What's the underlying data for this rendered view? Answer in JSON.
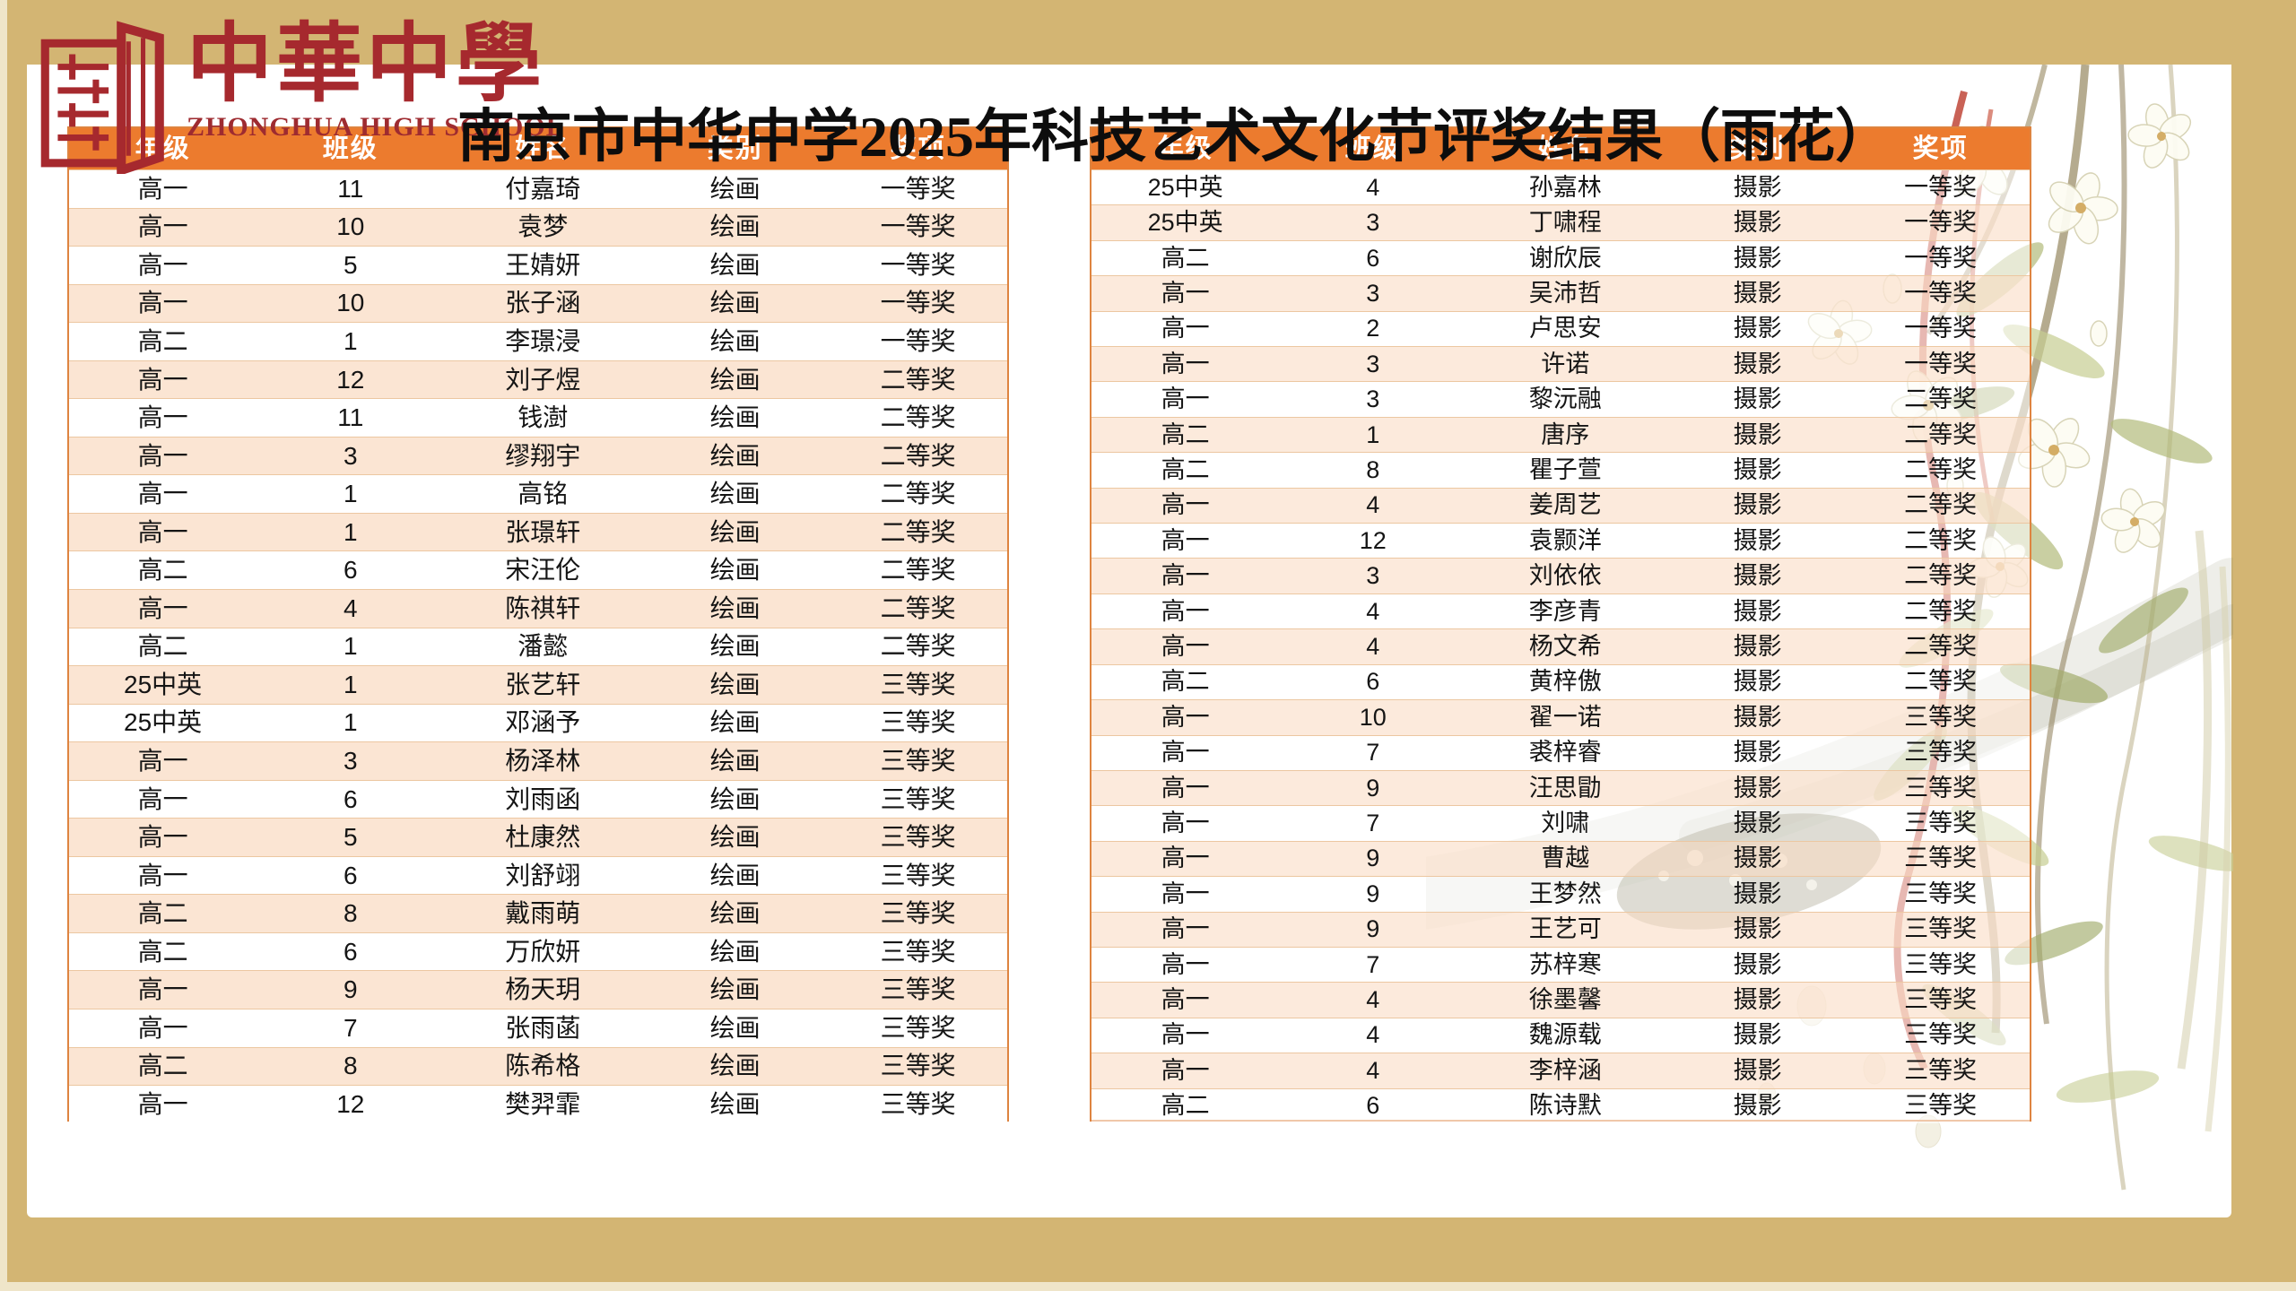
{
  "page": {
    "title": "南京市中华中学2025年科技艺术文化节评奖结果（雨花）",
    "background_color": "#D3B573"
  },
  "logo": {
    "school_name_zh": "中華中學",
    "school_name_en": "ZHONGHUA HIGH SCHOOL",
    "seal_color": "#A6292E"
  },
  "colors": {
    "header_bg": "#EC7B2E",
    "row_alt": "#FBE5D3",
    "table_border": "#DE8440",
    "row_line": "#ECC7A1",
    "gold_band": "#D3B573"
  },
  "table_headers": [
    "年级",
    "班级",
    "姓名",
    "类别",
    "奖项"
  ],
  "left_table": {
    "rows": [
      [
        "高一",
        "11",
        "付嘉琦",
        "绘画",
        "一等奖"
      ],
      [
        "高一",
        "10",
        "袁梦",
        "绘画",
        "一等奖"
      ],
      [
        "高一",
        "5",
        "王婧妍",
        "绘画",
        "一等奖"
      ],
      [
        "高一",
        "10",
        "张子涵",
        "绘画",
        "一等奖"
      ],
      [
        "高二",
        "1",
        "李璟浸",
        "绘画",
        "一等奖"
      ],
      [
        "高一",
        "12",
        "刘子煜",
        "绘画",
        "二等奖"
      ],
      [
        "高一",
        "11",
        "钱澍",
        "绘画",
        "二等奖"
      ],
      [
        "高一",
        "3",
        "缪翔宇",
        "绘画",
        "二等奖"
      ],
      [
        "高一",
        "1",
        "高铭",
        "绘画",
        "二等奖"
      ],
      [
        "高一",
        "1",
        "张璟轩",
        "绘画",
        "二等奖"
      ],
      [
        "高二",
        "6",
        "宋汪伦",
        "绘画",
        "二等奖"
      ],
      [
        "高一",
        "4",
        "陈祺轩",
        "绘画",
        "二等奖"
      ],
      [
        "高二",
        "1",
        "潘懿",
        "绘画",
        "二等奖"
      ],
      [
        "25中英",
        "1",
        "张艺轩",
        "绘画",
        "三等奖"
      ],
      [
        "25中英",
        "1",
        "邓涵予",
        "绘画",
        "三等奖"
      ],
      [
        "高一",
        "3",
        "杨泽林",
        "绘画",
        "三等奖"
      ],
      [
        "高一",
        "6",
        "刘雨函",
        "绘画",
        "三等奖"
      ],
      [
        "高一",
        "5",
        "杜康然",
        "绘画",
        "三等奖"
      ],
      [
        "高一",
        "6",
        "刘舒翊",
        "绘画",
        "三等奖"
      ],
      [
        "高二",
        "8",
        "戴雨萌",
        "绘画",
        "三等奖"
      ],
      [
        "高二",
        "6",
        "万欣妍",
        "绘画",
        "三等奖"
      ],
      [
        "高一",
        "9",
        "杨天玥",
        "绘画",
        "三等奖"
      ],
      [
        "高一",
        "7",
        "张雨菡",
        "绘画",
        "三等奖"
      ],
      [
        "高二",
        "8",
        "陈希格",
        "绘画",
        "三等奖"
      ],
      [
        "高一",
        "12",
        "樊羿霏",
        "绘画",
        "三等奖"
      ]
    ]
  },
  "right_table": {
    "rows": [
      [
        "25中英",
        "4",
        "孙嘉林",
        "摄影",
        "一等奖"
      ],
      [
        "25中英",
        "3",
        "丁啸程",
        "摄影",
        "一等奖"
      ],
      [
        "高二",
        "6",
        "谢欣辰",
        "摄影",
        "一等奖"
      ],
      [
        "高一",
        "3",
        "吴沛哲",
        "摄影",
        "一等奖"
      ],
      [
        "高一",
        "2",
        "卢思安",
        "摄影",
        "一等奖"
      ],
      [
        "高一",
        "3",
        "许诺",
        "摄影",
        "一等奖"
      ],
      [
        "高一",
        "3",
        "黎沅融",
        "摄影",
        "二等奖"
      ],
      [
        "高二",
        "1",
        "唐序",
        "摄影",
        "二等奖"
      ],
      [
        "高二",
        "8",
        "瞿子萱",
        "摄影",
        "二等奖"
      ],
      [
        "高一",
        "4",
        "姜周艺",
        "摄影",
        "二等奖"
      ],
      [
        "高一",
        "12",
        "袁颢洋",
        "摄影",
        "二等奖"
      ],
      [
        "高一",
        "3",
        "刘依依",
        "摄影",
        "二等奖"
      ],
      [
        "高一",
        "4",
        "李彦青",
        "摄影",
        "二等奖"
      ],
      [
        "高一",
        "4",
        "杨文希",
        "摄影",
        "二等奖"
      ],
      [
        "高二",
        "6",
        "黄梓傲",
        "摄影",
        "二等奖"
      ],
      [
        "高一",
        "10",
        "翟一诺",
        "摄影",
        "三等奖"
      ],
      [
        "高一",
        "7",
        "裘梓睿",
        "摄影",
        "三等奖"
      ],
      [
        "高一",
        "9",
        "汪思勖",
        "摄影",
        "三等奖"
      ],
      [
        "高一",
        "7",
        "刘啸",
        "摄影",
        "三等奖"
      ],
      [
        "高一",
        "9",
        "曹越",
        "摄影",
        "三等奖"
      ],
      [
        "高一",
        "9",
        "王梦然",
        "摄影",
        "三等奖"
      ],
      [
        "高一",
        "9",
        "王艺可",
        "摄影",
        "三等奖"
      ],
      [
        "高一",
        "7",
        "苏梓寒",
        "摄影",
        "三等奖"
      ],
      [
        "高一",
        "4",
        "徐墨馨",
        "摄影",
        "三等奖"
      ],
      [
        "高一",
        "4",
        "魏源载",
        "摄影",
        "三等奖"
      ],
      [
        "高一",
        "4",
        "李梓涵",
        "摄影",
        "三等奖"
      ],
      [
        "高二",
        "6",
        "陈诗默",
        "摄影",
        "三等奖"
      ]
    ]
  }
}
